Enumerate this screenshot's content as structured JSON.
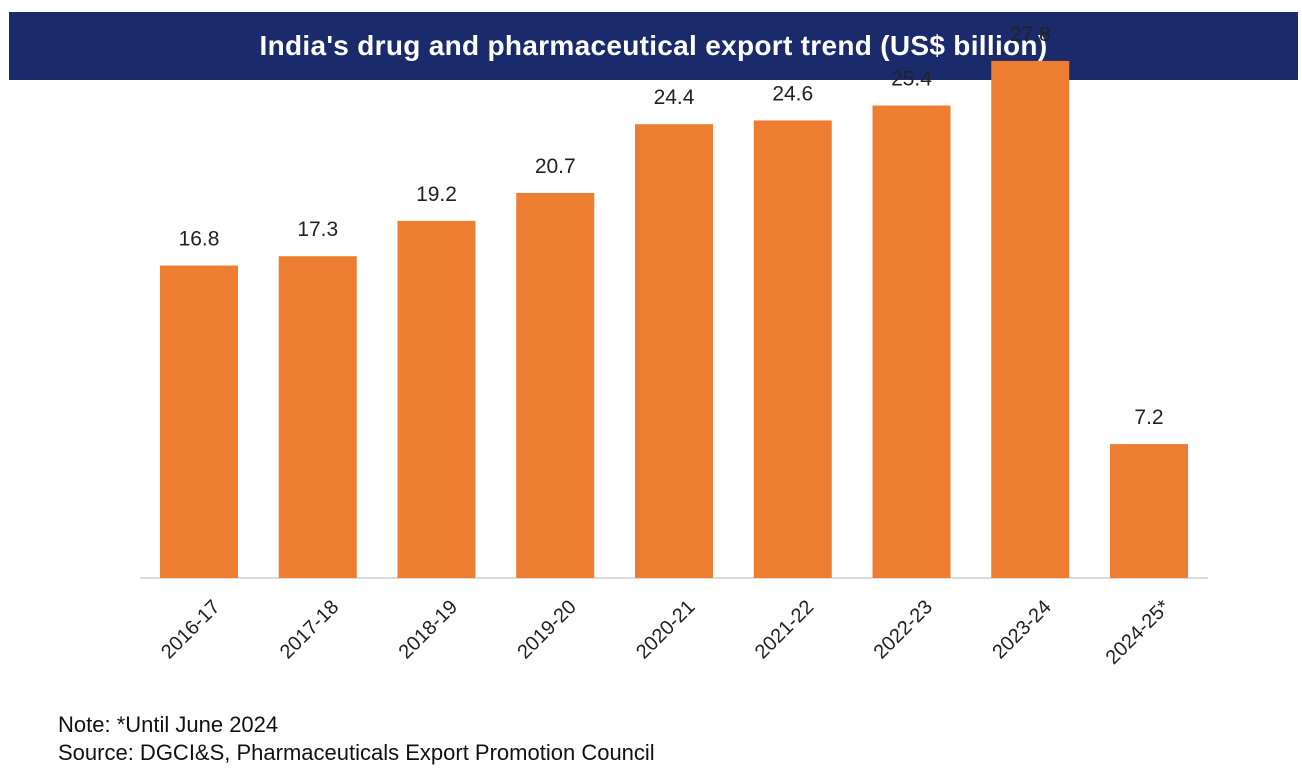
{
  "colors": {
    "title_bg": "#1b2a6b",
    "title_text": "#ffffff",
    "bar": "#ed7d31",
    "axis": "#d0d0d0"
  },
  "chart_data": {
    "type": "bar",
    "title": "India's drug and pharmaceutical export trend (US$ billion)",
    "xlabel": "",
    "ylabel": "",
    "ylim": [
      0,
      30
    ],
    "grid": false,
    "legend": "none",
    "categories": [
      "2016-17",
      "2017-18",
      "2018-19",
      "2019-20",
      "2020-21",
      "2021-22",
      "2022-23",
      "2023-24",
      "2024-25*"
    ],
    "values": [
      16.8,
      17.3,
      19.2,
      20.7,
      24.4,
      24.6,
      25.4,
      27.8,
      7.2
    ],
    "data_labels": [
      "16.8",
      "17.3",
      "19.2",
      "20.7",
      "24.4",
      "24.6",
      "25.4",
      "27.8",
      "7.2"
    ]
  },
  "footer": {
    "note": "Note: *Until June 2024",
    "source": "Source: DGCI&S, Pharmaceuticals Export Promotion Council"
  }
}
